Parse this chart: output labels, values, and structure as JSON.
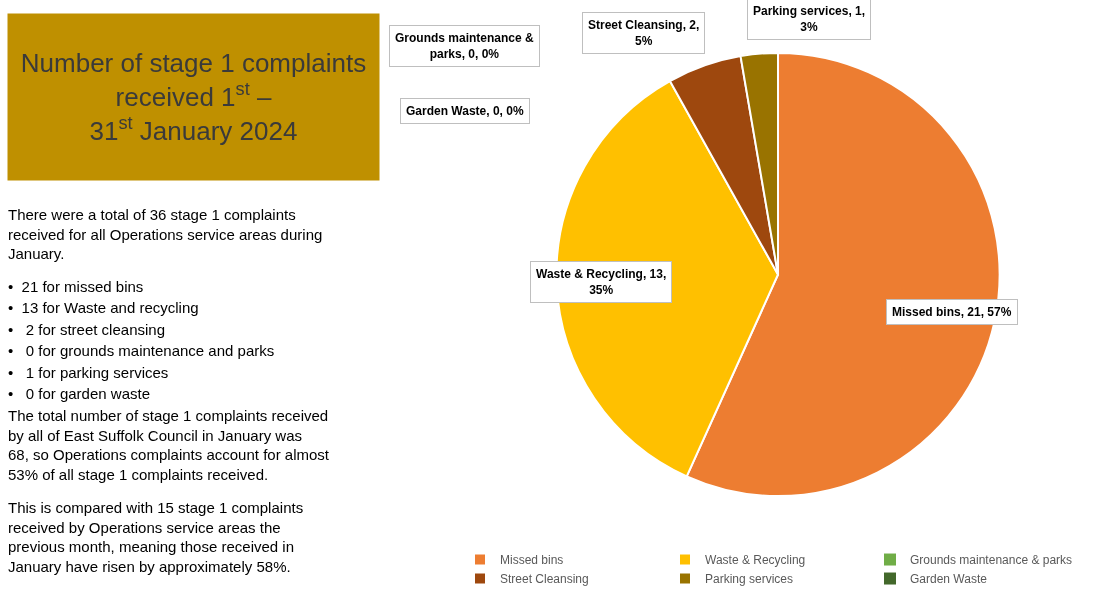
{
  "chart_data": {
    "type": "pie",
    "title": "Number of stage 1 complaints received 1$^{st}$ – 31$^{st}$ January 2024",
    "categories": [
      "Missed bins",
      "Waste & Recycling",
      "Grounds maintenance & parks",
      "Street Cleansing",
      "Parking services",
      "Garden Waste"
    ],
    "values": [
      21,
      13,
      0,
      2,
      1,
      0
    ],
    "colors": [
      "#ed7d31",
      "#ffc000",
      "#70ad47",
      "#9e480e",
      "#997300",
      "#43682b"
    ],
    "value_labels": [
      "Missed bins, 21, 57%",
      "Waste & Recycling, 13, 35%",
      "Grounds maintenance & parks, 0, 0%",
      "Street Cleansing, 2, 5%",
      "Parking services, 1, 3%",
      "Garden Waste, 0, 0%"
    ],
    "legend": "bottom",
    "annotations": [
      "There were a total of 36 stage 1 complaints received for all Operations service areas during January.",
      "•  21 for missed bins",
      "•  13 for Waste and recycling",
      "•   2 for street cleansing",
      "•   0 for grounds maintenance and parks",
      "•   1 for parking services",
      "•   0 for garden waste",
      "The total number of stage 1 complaints received by all of East Suffolk Council in January was 68, so Operations complaints account for almost 53% of all stage 1 complaints received.",
      "This is compared with 15 stage 1 complaints received by Operations service areas the previous month, meaning those received in January have risen by approximately 58%."
    ]
  }
}
